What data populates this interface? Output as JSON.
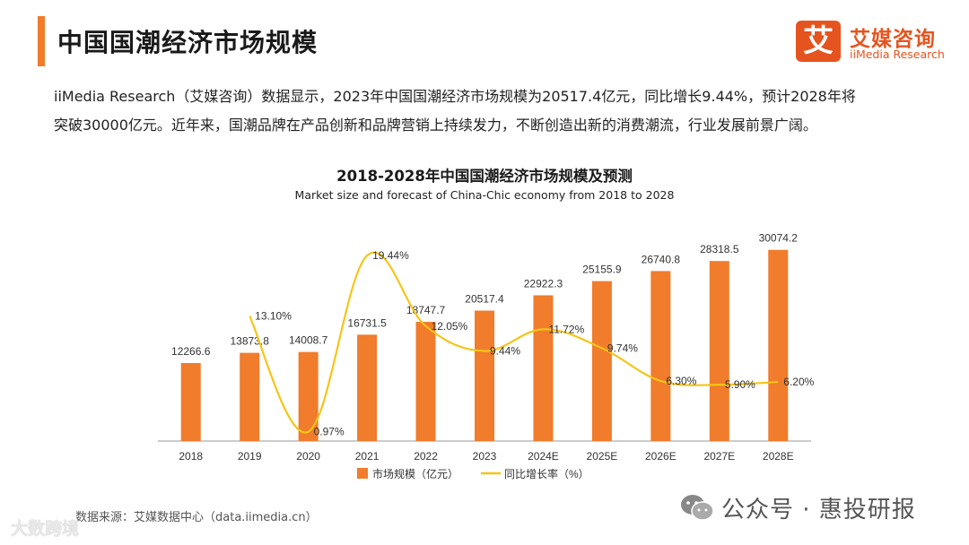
{
  "header": {
    "title": "中国国潮经济市场规模",
    "logo_mark": "艾",
    "logo_cn": "艾媒咨询",
    "logo_en": "iiMedia Research"
  },
  "intro": {
    "line1": "iiMedia Research（艾媒咨询）数据显示，2023年中国国潮经济市场规模为20517.4亿元，同比增长9.44%，预计2028年将",
    "line2": "突破30000亿元。近年来，国潮品牌在产品创新和品牌营销上持续发力，不断创造出新的消费潮流，行业发展前景广阔。"
  },
  "chart_data": {
    "type": "bar",
    "title": "2018-2028年中国国潮经济市场规模及预测",
    "subtitle": "Market size and forecast of China-Chic economy from 2018 to 2028",
    "categories": [
      "2018",
      "2019",
      "2020",
      "2021",
      "2022",
      "2023",
      "2024E",
      "2025E",
      "2026E",
      "2027E",
      "2028E"
    ],
    "series": [
      {
        "name": "市场规模（亿元）",
        "type": "bar",
        "color": "#f07c2c",
        "values": [
          12266.6,
          13873.8,
          14008.7,
          16731.5,
          18747.7,
          20517.4,
          22922.3,
          25155.9,
          26740.8,
          28318.5,
          30074.2
        ],
        "labels": [
          "12266.6",
          "13873.8",
          "14008.7",
          "16731.5",
          "18747.7",
          "20517.4",
          "22922.3",
          "25155.9",
          "26740.8",
          "28318.5",
          "30074.2"
        ]
      },
      {
        "name": "同比增长率（%）",
        "type": "line",
        "color": "#f5c518",
        "values": [
          null,
          13.1,
          0.97,
          19.44,
          12.05,
          9.44,
          11.72,
          9.74,
          6.3,
          5.9,
          6.2
        ],
        "labels": [
          "",
          "13.10%",
          "0.97%",
          "19.44%",
          "12.05%",
          "9.44%",
          "11.72%",
          "9.74%",
          "6.30%",
          "5.90%",
          "6.20%"
        ]
      }
    ],
    "ylim_bar": [
      0,
      33000
    ],
    "ylim_line": [
      0,
      22
    ],
    "grid": false,
    "legend": "bottom-center"
  },
  "footer": {
    "source": "数据来源：艾媒数据中心（data.iimedia.cn）",
    "watermark_left": "大数跨境",
    "watermark_right": "公众号 · 惠投研报"
  }
}
